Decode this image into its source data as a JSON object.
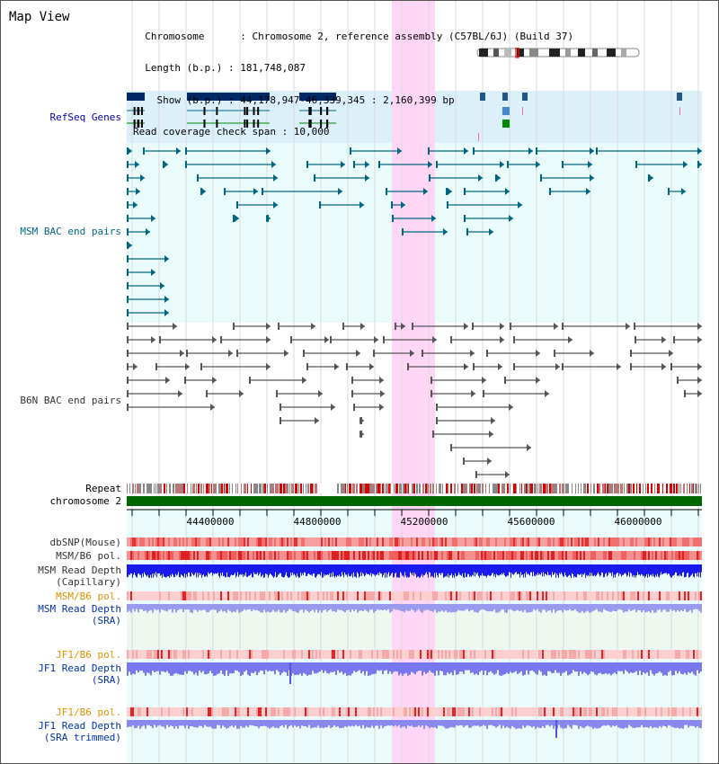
{
  "header": {
    "title": "Map View",
    "info_lines": [
      "  Chromosome      : Chromosome 2, reference assembly (C57BL/6J) (Build 37)",
      "  Length (b.p.) : 181,748,087",
      "    Show (b.p.) : 44,178,947-46,339,345 : 2,160,399 bp",
      "Read coverage check span : 10,000"
    ]
  },
  "tracks": {
    "refseq": "RefSeq Genes",
    "msm_bac": "MSM BAC end pairs",
    "b6n_bac": "B6N BAC end pairs",
    "repeat": "Repeat",
    "chromosome": "chromosome 2",
    "dbsnp": "dbSNP(Mouse)",
    "msm_b6_pol": "MSM/B6 pol.",
    "msm_depth_cap_1": "MSM Read Depth",
    "msm_depth_cap_2": "(Capillary)",
    "msm_b6_pol_sra": "MSM/B6 pol.",
    "msm_depth_sra_1": "MSM Read Depth",
    "msm_depth_sra_2": "(SRA)",
    "jf1_b6_pol": "JF1/B6 pol.",
    "jf1_depth_1": "JF1 Read Depth",
    "jf1_depth_2": "(SRA)",
    "jf1_b6_pol_trim": "JF1/B6 pol.",
    "jf1_depth_trim_1": "JF1 Read Depth",
    "jf1_depth_trim_2": "(SRA trimmed)"
  },
  "axis": {
    "ticks": [
      "44400000",
      "44800000",
      "45200000",
      "45600000",
      "46000000"
    ]
  },
  "colors": {
    "refseq_label": "#0000aa",
    "msm_label": "#006680",
    "b6n_label": "#333333",
    "orange_label": "#e09000",
    "blue_label": "#0033aa",
    "highlight": "#ffd6f5",
    "chromosome_bar": "#006600"
  }
}
